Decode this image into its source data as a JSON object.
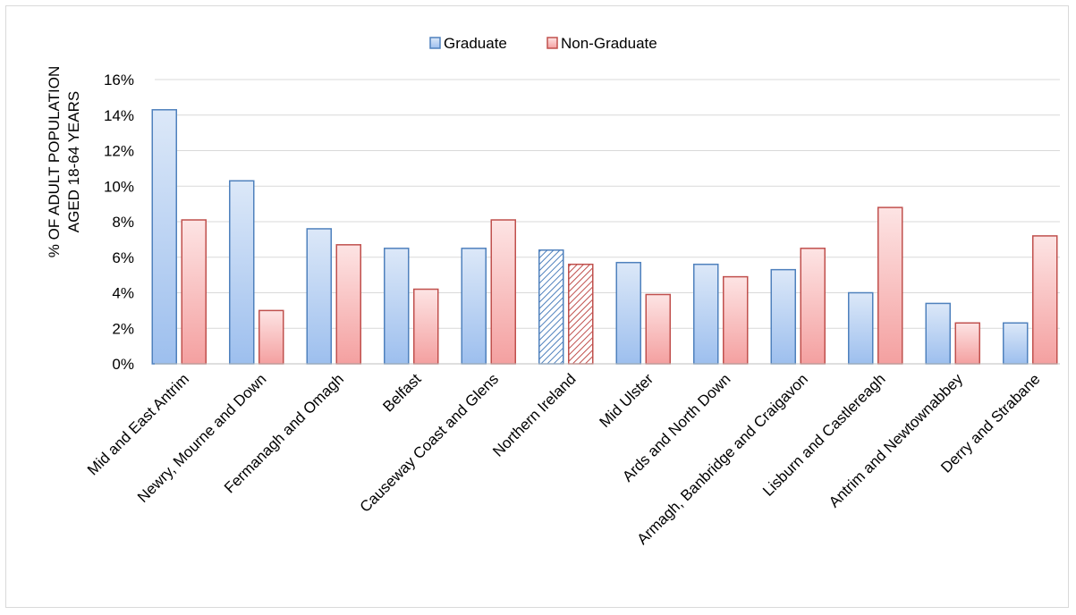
{
  "chart_data": {
    "type": "bar",
    "title": "",
    "ylabel": [
      "% OF ADULT POPULATION",
      "AGED 18-64 YEARS"
    ],
    "xlabel": "",
    "ylim": [
      0,
      16
    ],
    "yticks": [
      "0%",
      "2%",
      "4%",
      "6%",
      "8%",
      "10%",
      "12%",
      "14%",
      "16%"
    ],
    "grid": true,
    "legend_position": "top-center",
    "categories": [
      "Mid and East Antrim",
      "Newry, Mourne and Down",
      "Fermanagh and Omagh",
      "Belfast",
      "Causeway Coast and Glens",
      "Northern Ireland",
      "Mid Ulster",
      "Ards and North Down",
      "Armagh, Banbridge and Craigavon",
      "Lisburn and Castlereagh",
      "Antrim and Newtownabbey",
      "Derry and Strabane"
    ],
    "highlight_category": "Northern Ireland",
    "series": [
      {
        "name": "Graduate",
        "color": "#4f81bd",
        "fill_top": "#dce8f8",
        "fill_bottom": "#9dbfee",
        "values": [
          14.3,
          10.3,
          7.6,
          6.5,
          6.5,
          6.4,
          5.7,
          5.6,
          5.3,
          4.0,
          3.4,
          2.3
        ]
      },
      {
        "name": "Non-Graduate",
        "color": "#c0504d",
        "fill_top": "#fde4e4",
        "fill_bottom": "#f4a0a0",
        "values": [
          8.1,
          3.0,
          6.7,
          4.2,
          8.1,
          5.6,
          3.9,
          4.9,
          6.5,
          8.8,
          2.3,
          7.2
        ]
      }
    ]
  }
}
